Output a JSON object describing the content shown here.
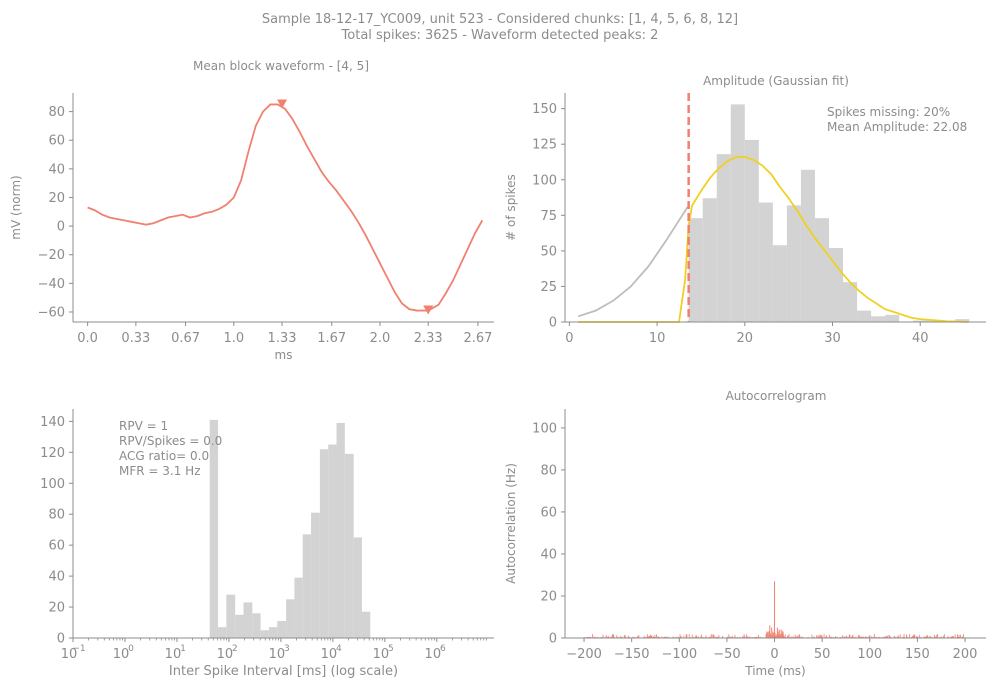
{
  "suptitle": {
    "line1": "Sample 18-12-17_YC009, unit 523 - Considered chunks: [1, 4, 5, 6, 8, 12]",
    "line2": "Total spikes: 3625 - Waveform detected peaks: 2"
  },
  "colors": {
    "waveform": "#f08070",
    "hist": "#d3d3d3",
    "fit": "#f0d020",
    "fit_full": "#bdbdbd",
    "axis": "#8c8c8c",
    "acg": "#f08070"
  },
  "chart_data": [
    {
      "type": "line",
      "title": "Mean block waveform - [4, 5]",
      "xlabel": "ms",
      "ylabel": "mV (norm)",
      "xlim": [
        -0.1,
        2.78
      ],
      "ylim": [
        -67,
        93
      ],
      "xticks": [
        0.0,
        0.33,
        0.67,
        1.0,
        1.33,
        1.67,
        2.0,
        2.33,
        2.67
      ],
      "xticklabels": [
        "0.0",
        "0.33",
        "0.67",
        "1.0",
        "1.33",
        "1.67",
        "2.0",
        "2.33",
        "2.67"
      ],
      "yticks": [
        -60,
        -40,
        -20,
        0,
        20,
        40,
        60,
        80
      ],
      "yticklabels": [
        "−60",
        "−40",
        "−20",
        "0",
        "20",
        "40",
        "60",
        "80"
      ],
      "series": [
        {
          "x": [
            0.0,
            0.05,
            0.1,
            0.15,
            0.2,
            0.25,
            0.3,
            0.35,
            0.4,
            0.45,
            0.5,
            0.55,
            0.6,
            0.65,
            0.7,
            0.75,
            0.8,
            0.85,
            0.9,
            0.95,
            1.0,
            1.05,
            1.1,
            1.15,
            1.2,
            1.25,
            1.3,
            1.35,
            1.4,
            1.45,
            1.5,
            1.55,
            1.6,
            1.65,
            1.7,
            1.75,
            1.8,
            1.85,
            1.9,
            1.95,
            2.0,
            2.05,
            2.1,
            2.15,
            2.2,
            2.25,
            2.3,
            2.33,
            2.4,
            2.45,
            2.5,
            2.55,
            2.6,
            2.65,
            2.7
          ],
          "y": [
            13,
            11,
            8,
            6,
            5,
            4,
            3,
            2,
            1,
            2,
            4,
            6,
            7,
            8,
            6,
            7,
            9,
            10,
            12,
            15,
            20,
            32,
            52,
            70,
            80,
            85,
            85,
            82,
            75,
            66,
            56,
            47,
            38,
            31,
            25,
            18,
            11,
            3,
            -6,
            -16,
            -26,
            -36,
            -46,
            -54,
            -58,
            -59,
            -59,
            -59,
            -55,
            -47,
            -38,
            -27,
            -16,
            -5,
            4
          ]
        }
      ],
      "peaks": [
        {
          "x": 1.33,
          "y": 85
        },
        {
          "x": 2.33,
          "y": -59
        }
      ]
    },
    {
      "type": "bar",
      "title": "Amplitude (Gaussian fit)",
      "xlabel": "",
      "ylabel": "# of spikes",
      "xlim": [
        -0.5,
        47.5
      ],
      "ylim": [
        0,
        161
      ],
      "xticks": [
        0,
        10,
        20,
        30,
        40
      ],
      "xticklabels": [
        "0",
        "10",
        "20",
        "30",
        "40"
      ],
      "yticks": [
        0,
        25,
        50,
        75,
        100,
        125,
        150
      ],
      "yticklabels": [
        "0",
        "25",
        "50",
        "75",
        "100",
        "125",
        "150"
      ],
      "annotation": [
        "Spikes missing: 20%",
        "Mean Amplitude: 22.08"
      ],
      "threshold_x": 13.6,
      "bin_width": 1.6,
      "bins": [
        13.6,
        15.2,
        16.8,
        18.4,
        20.0,
        21.6,
        23.2,
        24.8,
        26.4,
        28.0,
        29.6,
        31.2,
        32.8,
        34.4,
        36.0,
        37.6,
        39.2,
        40.8,
        42.4,
        44.0
      ],
      "values": [
        73,
        87,
        118,
        153,
        128,
        84,
        54,
        82,
        107,
        73,
        52,
        28,
        8,
        4,
        5,
        0,
        1,
        1,
        1,
        2
      ],
      "fit_full": {
        "x": [
          1,
          3,
          5,
          7,
          9,
          11,
          13.6
        ],
        "y": [
          4,
          8,
          15,
          25,
          39,
          57,
          82
        ]
      },
      "fit": {
        "x": [
          1,
          5,
          10,
          12.5,
          13.2,
          13.6,
          14,
          15,
          16,
          17,
          18,
          19,
          20,
          21,
          22,
          23,
          24,
          25,
          26,
          27,
          28,
          29,
          30,
          31,
          32,
          33,
          34,
          35,
          36,
          37,
          38,
          39,
          40,
          41,
          42,
          43,
          44,
          45.5
        ],
        "y": [
          0,
          0,
          0,
          0,
          30,
          68,
          82,
          92,
          101,
          108,
          113,
          116,
          116,
          114,
          110,
          104,
          95,
          87,
          78,
          68,
          59,
          51,
          43,
          35,
          28,
          22,
          17,
          13,
          9,
          7,
          5,
          3,
          2,
          1.5,
          1,
          0.5,
          0.3,
          0
        ]
      }
    },
    {
      "type": "bar",
      "title": "",
      "xlabel": "Inter Spike Interval [ms] (log scale)",
      "ylabel": "",
      "xscale": "log",
      "xlim_log10": [
        -1,
        7.1
      ],
      "ylim": [
        0,
        148
      ],
      "xticks_log10": [
        -1,
        0,
        1,
        2,
        3,
        4,
        5,
        6
      ],
      "xticklabels": [
        "10",
        "10",
        "10",
        "10",
        "10",
        "10",
        "10",
        "10"
      ],
      "xtickexponents": [
        "−1",
        "0",
        "1",
        "2",
        "3",
        "4",
        "5",
        "6"
      ],
      "yticks": [
        0,
        20,
        40,
        60,
        80,
        100,
        120,
        140
      ],
      "yticklabels": [
        "0",
        "20",
        "40",
        "60",
        "80",
        "100",
        "120",
        "140"
      ],
      "annotation": [
        "RPV = 1",
        "RPV/Spikes = 0.0",
        "ACG ratio= 0.0",
        "MFR = 3.1 Hz"
      ],
      "bin_edges_log10": [
        1.63,
        1.79,
        1.95,
        2.12,
        2.28,
        2.45,
        2.61,
        2.77,
        2.93,
        3.1,
        3.26,
        3.42,
        3.58,
        3.75,
        3.91,
        4.07,
        4.23,
        4.4,
        4.56,
        4.72,
        4.87
      ],
      "values": [
        141,
        7,
        28,
        15,
        23,
        16,
        5,
        7,
        11,
        25,
        39,
        67,
        81,
        122,
        125,
        139,
        119,
        65,
        17,
        0
      ]
    },
    {
      "type": "bar",
      "title": "Autocorrelogram",
      "xlabel": "Time (ms)",
      "ylabel": "Autocorrelation (Hz)",
      "xlim": [
        -220,
        222
      ],
      "ylim": [
        0,
        109
      ],
      "xticks": [
        -200,
        -150,
        -100,
        -50,
        0,
        50,
        100,
        150,
        200
      ],
      "xticklabels": [
        "−200",
        "−150",
        "−100",
        "−50",
        "0",
        "50",
        "100",
        "150",
        "200"
      ],
      "yticks": [
        0,
        20,
        40,
        60,
        80,
        100
      ],
      "yticklabels": [
        "0",
        "20",
        "40",
        "60",
        "80",
        "100"
      ],
      "center_peaks": [
        {
          "x": 0,
          "y": 27
        },
        {
          "x": -5,
          "y": 6
        },
        {
          "x": -3,
          "y": 5
        },
        {
          "x": 3,
          "y": 5
        },
        {
          "x": 5,
          "y": 4
        },
        {
          "x": 7,
          "y": 4
        },
        {
          "x": -7,
          "y": 3
        },
        {
          "x": 9,
          "y": 3
        }
      ],
      "baseline_max": 2
    }
  ]
}
